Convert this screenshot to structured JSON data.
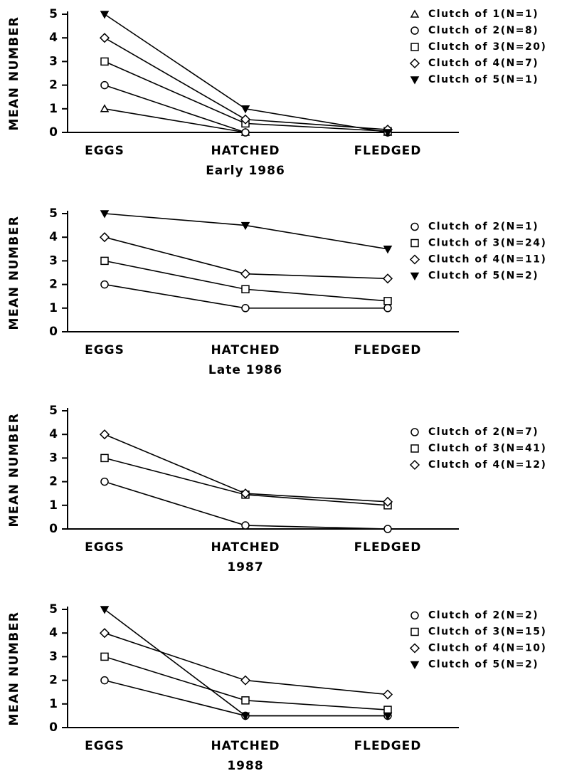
{
  "chart_data": [
    {
      "type": "line",
      "xlabel": "Early 1986",
      "ylabel": "MEAN NUMBER",
      "categories": [
        "EGGS",
        "HATCHED",
        "FLEDGED"
      ],
      "ylim": [
        0,
        5
      ],
      "yticks": [
        0,
        1,
        2,
        3,
        4,
        5
      ],
      "legend": "upper right",
      "series": [
        {
          "name": "Clutch of 1(N=1)",
          "color": "#000",
          "marker": "triangle-up",
          "values": [
            1,
            0,
            0
          ]
        },
        {
          "name": "Clutch of 2(N=8)",
          "color": "#000",
          "marker": "circle",
          "values": [
            2,
            0,
            0
          ]
        },
        {
          "name": "Clutch of 3(N=20)",
          "color": "#000",
          "marker": "square",
          "values": [
            3,
            0.38,
            0.05
          ]
        },
        {
          "name": "Clutch of 4(N=7)",
          "color": "#000",
          "marker": "diamond",
          "values": [
            4,
            0.55,
            0.12
          ]
        },
        {
          "name": "Clutch of 5(N=1)",
          "color": "#000",
          "marker": "triangle-down",
          "values": [
            5,
            1,
            0
          ]
        }
      ]
    },
    {
      "type": "line",
      "xlabel": "Late 1986",
      "ylabel": "MEAN NUMBER",
      "categories": [
        "EGGS",
        "HATCHED",
        "FLEDGED"
      ],
      "ylim": [
        0,
        5
      ],
      "yticks": [
        0,
        1,
        2,
        3,
        4,
        5
      ],
      "legend": "center right",
      "series": [
        {
          "name": "Clutch of 2(N=1)",
          "color": "#000",
          "marker": "circle",
          "values": [
            2,
            1,
            1
          ]
        },
        {
          "name": "Clutch of 3(N=24)",
          "color": "#000",
          "marker": "square",
          "values": [
            3,
            1.8,
            1.3
          ]
        },
        {
          "name": "Clutch of 4(N=11)",
          "color": "#000",
          "marker": "diamond",
          "values": [
            4,
            2.45,
            2.25
          ]
        },
        {
          "name": "Clutch of 5(N=2)",
          "color": "#000",
          "marker": "triangle-down",
          "values": [
            5,
            4.5,
            3.5
          ]
        }
      ]
    },
    {
      "type": "line",
      "xlabel": "1987",
      "ylabel": "MEAN NUMBER",
      "categories": [
        "EGGS",
        "HATCHED",
        "FLEDGED"
      ],
      "ylim": [
        0,
        5
      ],
      "yticks": [
        0,
        1,
        2,
        3,
        4,
        5
      ],
      "legend": "center right",
      "series": [
        {
          "name": "Clutch of 2(N=7)",
          "color": "#000",
          "marker": "circle",
          "values": [
            2,
            0.15,
            0
          ]
        },
        {
          "name": "Clutch of 3(N=41)",
          "color": "#000",
          "marker": "square",
          "values": [
            3,
            1.45,
            1.0
          ]
        },
        {
          "name": "Clutch of 4(N=12)",
          "color": "#000",
          "marker": "diamond",
          "values": [
            4,
            1.5,
            1.15
          ]
        }
      ]
    },
    {
      "type": "line",
      "xlabel": "1988",
      "ylabel": "MEAN NUMBER",
      "categories": [
        "EGGS",
        "HATCHED",
        "FLEDGED"
      ],
      "ylim": [
        0,
        5
      ],
      "yticks": [
        0,
        1,
        2,
        3,
        4,
        5
      ],
      "legend": "center right",
      "series": [
        {
          "name": "Clutch of 2(N=2)",
          "color": "#000",
          "marker": "circle",
          "values": [
            2,
            0.5,
            0.5
          ]
        },
        {
          "name": "Clutch of 3(N=15)",
          "color": "#000",
          "marker": "square",
          "values": [
            3,
            1.15,
            0.75
          ]
        },
        {
          "name": "Clutch of 4(N=10)",
          "color": "#000",
          "marker": "diamond",
          "values": [
            4,
            2,
            1.4
          ]
        },
        {
          "name": "Clutch of 5(N=2)",
          "color": "#000",
          "marker": "triangle-down",
          "values": [
            5,
            0.5,
            0.5
          ]
        }
      ]
    }
  ]
}
